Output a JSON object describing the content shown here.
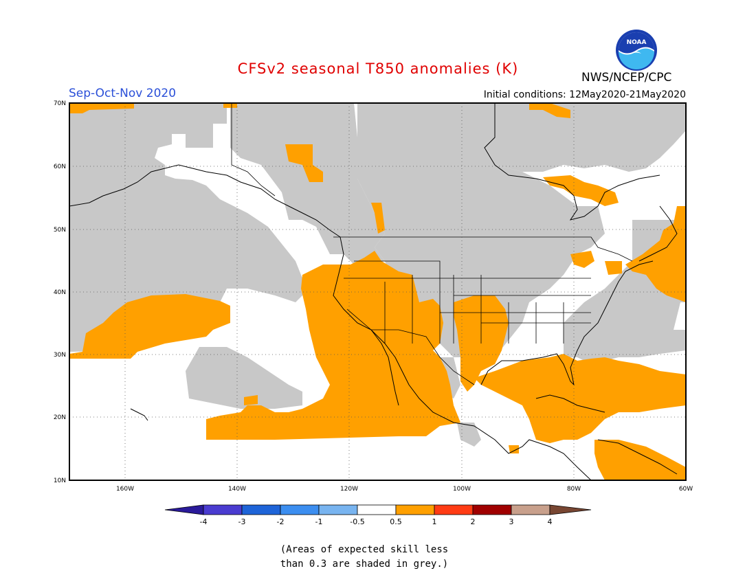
{
  "header": {
    "title": "CFSv2 seasonal T850 anomalies (K)",
    "season": "Sep-Oct-Nov 2020",
    "initial_conditions": "Initial conditions: 12May2020-21May2020",
    "agency": "NWS/NCEP/CPC",
    "logo_text": "NOAA"
  },
  "map": {
    "region": "North America",
    "lon_range": [
      "170W",
      "60W"
    ],
    "lat_range": [
      "10N",
      "70N"
    ],
    "lat_ticks": [
      "70N",
      "60N",
      "50N",
      "40N",
      "30N",
      "20N",
      "10N"
    ],
    "lon_ticks": [
      "160W",
      "140W",
      "120W",
      "100W",
      "80W",
      "60W"
    ],
    "grid": "dotted"
  },
  "legend": {
    "labels": [
      "-4",
      "-3",
      "-2",
      "-1",
      "-0.5",
      "0.5",
      "1",
      "2",
      "3",
      "4"
    ],
    "colors": [
      "#2a1a9a",
      "#4a3cd0",
      "#1e64d8",
      "#3c8ef0",
      "#78b4f0",
      "#ffffff",
      "#ffa000",
      "#ff3c14",
      "#a00000",
      "#c8a08c",
      "#784632"
    ],
    "grey_color": "#c8c8c8",
    "anomaly_color": "#ffa000"
  },
  "footer": {
    "note_line1": "(Areas of expected skill less",
    "note_line2": "than 0.3 are shaded in grey.)"
  }
}
